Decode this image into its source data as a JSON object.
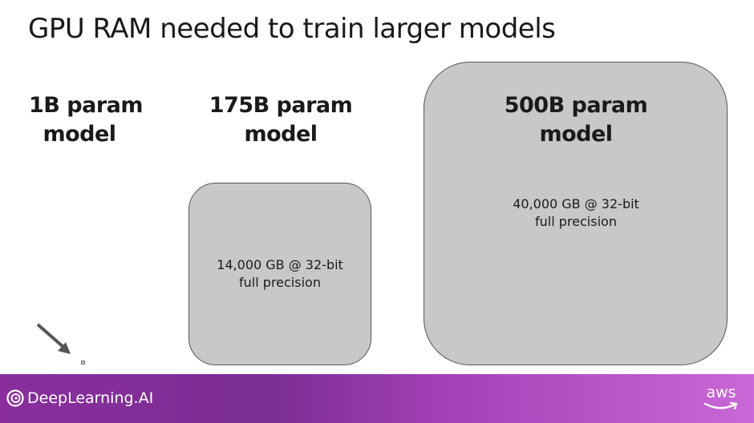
{
  "title": "GPU RAM needed to train larger models",
  "models": [
    {
      "label_line1": "1B param",
      "label_line2": "model",
      "memory_line1": "",
      "memory_line2": ""
    },
    {
      "label_line1": "175B param",
      "label_line2": "model",
      "memory_line1": "14,000 GB @ 32-bit",
      "memory_line2": "full precision"
    },
    {
      "label_line1": "500B param",
      "label_line2": "model",
      "memory_line1": "40,000 GB @ 32-bit",
      "memory_line2": "full precision"
    }
  ],
  "footer": {
    "brand": "DeepLearning.AI",
    "partner": "aws"
  },
  "colors": {
    "box_fill": "#c8c8c8",
    "footer_start": "#8a2e9e",
    "footer_end": "#c968d6"
  }
}
